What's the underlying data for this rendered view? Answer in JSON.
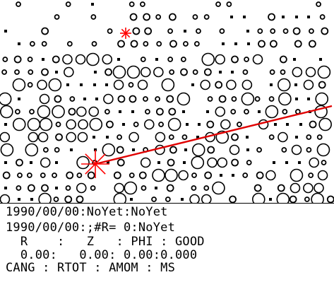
{
  "display": {
    "colors": {
      "background": "#ffffff",
      "hits": "#000000",
      "track": "#e00000",
      "marker": "#ff0000"
    }
  },
  "status": {
    "line0": "1990/00/00:NoYet:NoYet",
    "line1": "1990/00/00:;#R= 0:NoYet",
    "line2": "  R    :   Z   : PHI : GOOD",
    "line3": "  0.00:   0.00: 0.00:0.000",
    "line4": "CANG : RTOT : AMOM : MS"
  }
}
